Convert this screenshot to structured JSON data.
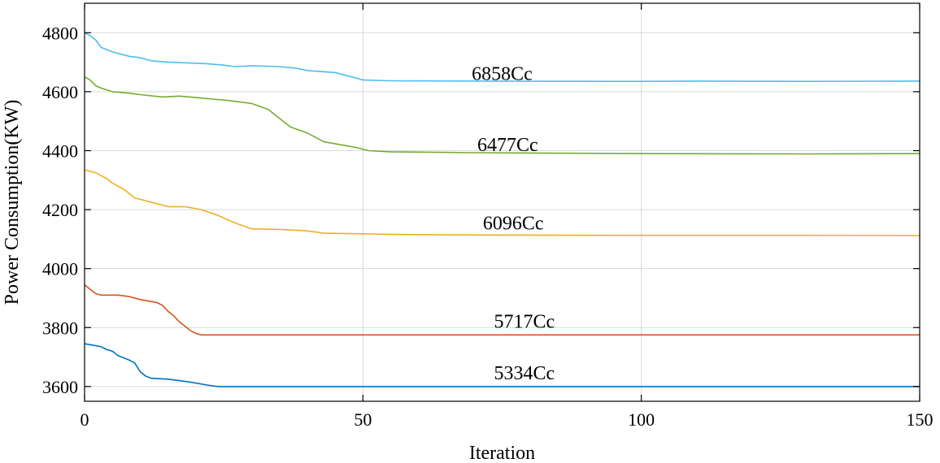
{
  "chart_data": {
    "type": "line",
    "title": "",
    "xlabel": "Iteration",
    "ylabel": "Power Consumption(KW)",
    "xlim": [
      0,
      150
    ],
    "ylim": [
      3550,
      4900
    ],
    "xticks": [
      0,
      50,
      100,
      150
    ],
    "yticks": [
      3600,
      3800,
      4000,
      4200,
      4400,
      4600,
      4800
    ],
    "grid": true,
    "legend": "none",
    "series": [
      {
        "name": "6858Cc",
        "color": "#4DBEEE",
        "label_at": [
          75,
          4640
        ],
        "points": [
          [
            0,
            4800
          ],
          [
            1,
            4790
          ],
          [
            2,
            4775
          ],
          [
            3,
            4750
          ],
          [
            5,
            4735
          ],
          [
            8,
            4720
          ],
          [
            10,
            4715
          ],
          [
            12,
            4705
          ],
          [
            15,
            4700
          ],
          [
            18,
            4698
          ],
          [
            22,
            4695
          ],
          [
            25,
            4690
          ],
          [
            27,
            4685
          ],
          [
            30,
            4688
          ],
          [
            35,
            4685
          ],
          [
            38,
            4680
          ],
          [
            40,
            4672
          ],
          [
            45,
            4665
          ],
          [
            48,
            4650
          ],
          [
            50,
            4640
          ],
          [
            55,
            4637
          ],
          [
            70,
            4636
          ],
          [
            100,
            4635
          ],
          [
            110,
            4636
          ],
          [
            130,
            4635
          ],
          [
            150,
            4636
          ]
        ]
      },
      {
        "name": "6477Cc",
        "color": "#77AC30",
        "label_at": [
          76,
          4398
        ],
        "points": [
          [
            0,
            4650
          ],
          [
            1,
            4640
          ],
          [
            2,
            4620
          ],
          [
            3,
            4612
          ],
          [
            5,
            4600
          ],
          [
            8,
            4595
          ],
          [
            10,
            4590
          ],
          [
            14,
            4582
          ],
          [
            17,
            4585
          ],
          [
            20,
            4580
          ],
          [
            23,
            4575
          ],
          [
            26,
            4570
          ],
          [
            30,
            4560
          ],
          [
            33,
            4540
          ],
          [
            35,
            4510
          ],
          [
            37,
            4480
          ],
          [
            40,
            4460
          ],
          [
            43,
            4430
          ],
          [
            46,
            4420
          ],
          [
            49,
            4410
          ],
          [
            51,
            4400
          ],
          [
            55,
            4396
          ],
          [
            70,
            4393
          ],
          [
            100,
            4390
          ],
          [
            130,
            4389
          ],
          [
            150,
            4390
          ]
        ]
      },
      {
        "name": "6096Cc",
        "color": "#EDB120",
        "label_at": [
          77,
          4133
        ],
        "points": [
          [
            0,
            4335
          ],
          [
            2,
            4325
          ],
          [
            3,
            4315
          ],
          [
            4,
            4305
          ],
          [
            5,
            4290
          ],
          [
            7,
            4270
          ],
          [
            9,
            4240
          ],
          [
            11,
            4230
          ],
          [
            13,
            4220
          ],
          [
            15,
            4210
          ],
          [
            18,
            4210
          ],
          [
            21,
            4200
          ],
          [
            24,
            4180
          ],
          [
            27,
            4155
          ],
          [
            30,
            4135
          ],
          [
            35,
            4133
          ],
          [
            40,
            4128
          ],
          [
            43,
            4120
          ],
          [
            50,
            4118
          ],
          [
            55,
            4116
          ],
          [
            70,
            4114
          ],
          [
            100,
            4113
          ],
          [
            130,
            4113
          ],
          [
            150,
            4112
          ]
        ]
      },
      {
        "name": "5717Cc",
        "color": "#D95319",
        "label_at": [
          79,
          3800
        ],
        "points": [
          [
            0,
            3945
          ],
          [
            1,
            3930
          ],
          [
            2,
            3915
          ],
          [
            3,
            3910
          ],
          [
            6,
            3910
          ],
          [
            8,
            3905
          ],
          [
            10,
            3895
          ],
          [
            13,
            3885
          ],
          [
            14,
            3875
          ],
          [
            15,
            3855
          ],
          [
            16,
            3840
          ],
          [
            17,
            3820
          ],
          [
            18,
            3805
          ],
          [
            19,
            3790
          ],
          [
            20,
            3780
          ],
          [
            21,
            3775
          ],
          [
            30,
            3775
          ],
          [
            60,
            3775
          ],
          [
            100,
            3775
          ],
          [
            150,
            3775
          ]
        ]
      },
      {
        "name": "5334Cc",
        "color": "#0072BD",
        "label_at": [
          79,
          3625
        ],
        "points": [
          [
            0,
            3745
          ],
          [
            1,
            3742
          ],
          [
            3,
            3735
          ],
          [
            4,
            3725
          ],
          [
            5,
            3720
          ],
          [
            6,
            3705
          ],
          [
            8,
            3690
          ],
          [
            9,
            3680
          ],
          [
            10,
            3650
          ],
          [
            11,
            3635
          ],
          [
            12,
            3628
          ],
          [
            15,
            3625
          ],
          [
            17,
            3620
          ],
          [
            19,
            3615
          ],
          [
            22,
            3605
          ],
          [
            24,
            3600
          ],
          [
            30,
            3600
          ],
          [
            60,
            3600
          ],
          [
            100,
            3600
          ],
          [
            150,
            3600
          ]
        ]
      }
    ]
  }
}
